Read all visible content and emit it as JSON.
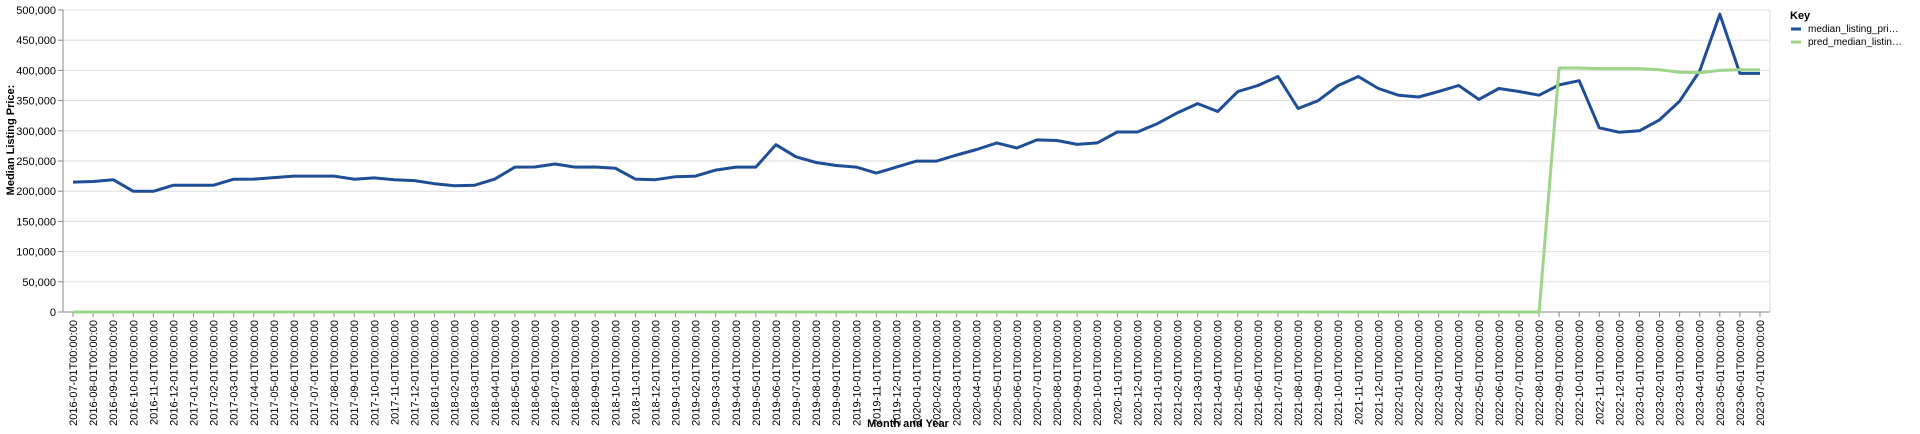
{
  "chart_data": {
    "type": "line",
    "xlabel": "Month and Year",
    "ylabel": "Median Listing Price:",
    "ylim": [
      0,
      500000
    ],
    "yticks": [
      0,
      50000,
      100000,
      150000,
      200000,
      250000,
      300000,
      350000,
      400000,
      450000,
      500000
    ],
    "ytick_labels": [
      "0",
      "50,000",
      "100,000",
      "150,000",
      "200,000",
      "250,000",
      "300,000",
      "350,000",
      "400,000",
      "450,000",
      "500,000"
    ],
    "grid": true,
    "legend": {
      "title": "Key",
      "placement": "right"
    },
    "x": [
      "2016-07-01T00:00:00",
      "2016-08-01T00:00:00",
      "2016-09-01T00:00:00",
      "2016-10-01T00:00:00",
      "2016-11-01T00:00:00",
      "2016-12-01T00:00:00",
      "2017-01-01T00:00:00",
      "2017-02-01T00:00:00",
      "2017-03-01T00:00:00",
      "2017-04-01T00:00:00",
      "2017-05-01T00:00:00",
      "2017-06-01T00:00:00",
      "2017-07-01T00:00:00",
      "2017-08-01T00:00:00",
      "2017-09-01T00:00:00",
      "2017-10-01T00:00:00",
      "2017-11-01T00:00:00",
      "2017-12-01T00:00:00",
      "2018-01-01T00:00:00",
      "2018-02-01T00:00:00",
      "2018-03-01T00:00:00",
      "2018-04-01T00:00:00",
      "2018-05-01T00:00:00",
      "2018-06-01T00:00:00",
      "2018-07-01T00:00:00",
      "2018-08-01T00:00:00",
      "2018-09-01T00:00:00",
      "2018-10-01T00:00:00",
      "2018-11-01T00:00:00",
      "2018-12-01T00:00:00",
      "2019-01-01T00:00:00",
      "2019-02-01T00:00:00",
      "2019-03-01T00:00:00",
      "2019-04-01T00:00:00",
      "2019-05-01T00:00:00",
      "2019-06-01T00:00:00",
      "2019-07-01T00:00:00",
      "2019-08-01T00:00:00",
      "2019-09-01T00:00:00",
      "2019-10-01T00:00:00",
      "2019-11-01T00:00:00",
      "2019-12-01T00:00:00",
      "2020-01-01T00:00:00",
      "2020-02-01T00:00:00",
      "2020-03-01T00:00:00",
      "2020-04-01T00:00:00",
      "2020-05-01T00:00:00",
      "2020-06-01T00:00:00",
      "2020-07-01T00:00:00",
      "2020-08-01T00:00:00",
      "2020-09-01T00:00:00",
      "2020-10-01T00:00:00",
      "2020-11-01T00:00:00",
      "2020-12-01T00:00:00",
      "2021-01-01T00:00:00",
      "2021-02-01T00:00:00",
      "2021-03-01T00:00:00",
      "2021-04-01T00:00:00",
      "2021-05-01T00:00:00",
      "2021-06-01T00:00:00",
      "2021-07-01T00:00:00",
      "2021-08-01T00:00:00",
      "2021-09-01T00:00:00",
      "2021-10-01T00:00:00",
      "2021-11-01T00:00:00",
      "2021-12-01T00:00:00",
      "2022-01-01T00:00:00",
      "2022-02-01T00:00:00",
      "2022-03-01T00:00:00",
      "2022-04-01T00:00:00",
      "2022-05-01T00:00:00",
      "2022-06-01T00:00:00",
      "2022-07-01T00:00:00",
      "2022-08-01T00:00:00",
      "2022-09-01T00:00:00",
      "2022-10-01T00:00:00",
      "2022-11-01T00:00:00",
      "2022-12-01T00:00:00",
      "2023-01-01T00:00:00",
      "2023-02-01T00:00:00",
      "2023-03-01T00:00:00",
      "2023-04-01T00:00:00",
      "2023-05-01T00:00:00",
      "2023-06-01T00:00:00",
      "2023-07-01T00:00:00"
    ],
    "series": [
      {
        "name": "median_listing_pri…",
        "color": "#1f4e96",
        "values": [
          215000,
          216000,
          219000,
          199900,
          199900,
          210000,
          210000,
          210000,
          219900,
          220000,
          222500,
          225000,
          225000,
          225000,
          219900,
          222000,
          219000,
          217500,
          212500,
          209000,
          210000,
          220000,
          239900,
          240000,
          245000,
          239900,
          240000,
          238000,
          220000,
          219000,
          224000,
          225000,
          234900,
          239900,
          239900,
          277000,
          257000,
          247500,
          242500,
          239900,
          229900,
          239900,
          249900,
          249900,
          259900,
          269000,
          279900,
          271500,
          285000,
          284000,
          277500,
          280000,
          298000,
          298000,
          312000,
          329900,
          345000,
          332000,
          364900,
          375000,
          389900,
          337000,
          349900,
          375000,
          389900,
          370000,
          359000,
          356000,
          365000,
          375000,
          352000,
          370000,
          365000,
          359000,
          376000,
          383000,
          305000,
          297500,
          300000,
          318000,
          349000,
          399000,
          493000,
          395000,
          395000
        ]
      },
      {
        "name": "pred_median_listin…",
        "color": "#9ed58a",
        "values": [
          0,
          0,
          0,
          0,
          0,
          0,
          0,
          0,
          0,
          0,
          0,
          0,
          0,
          0,
          0,
          0,
          0,
          0,
          0,
          0,
          0,
          0,
          0,
          0,
          0,
          0,
          0,
          0,
          0,
          0,
          0,
          0,
          0,
          0,
          0,
          0,
          0,
          0,
          0,
          0,
          0,
          0,
          0,
          0,
          0,
          0,
          0,
          0,
          0,
          0,
          0,
          0,
          0,
          0,
          0,
          0,
          0,
          0,
          0,
          0,
          0,
          0,
          0,
          0,
          0,
          0,
          0,
          0,
          0,
          0,
          0,
          0,
          0,
          0,
          404000,
          404000,
          403000,
          403000,
          403000,
          401000,
          397000,
          396000,
          400000,
          401000,
          401000
        ]
      }
    ]
  }
}
